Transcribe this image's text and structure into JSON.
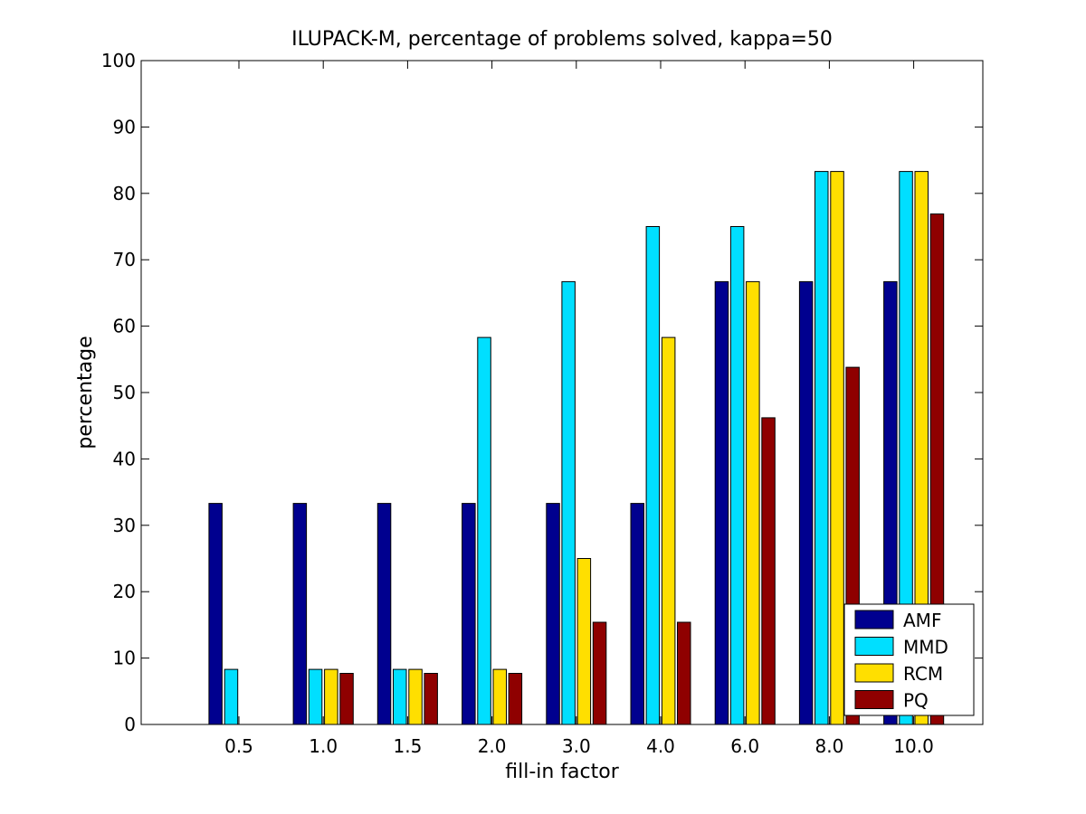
{
  "chart_data": {
    "type": "bar",
    "title": "ILUPACK-M, percentage of problems solved, kappa=50",
    "xlabel": "fill-in factor",
    "ylabel": "percentage",
    "ylim": [
      0,
      100
    ],
    "yticks": [
      0,
      10,
      20,
      30,
      40,
      50,
      60,
      70,
      80,
      90,
      100
    ],
    "categories": [
      "0.5",
      "1.0",
      "1.5",
      "2.0",
      "3.0",
      "4.0",
      "6.0",
      "8.0",
      "10.0"
    ],
    "grid": false,
    "legend_position": "bottom-right",
    "series": [
      {
        "name": "AMF",
        "color": "#00008f",
        "values": [
          33.3,
          33.3,
          33.3,
          33.3,
          33.3,
          33.3,
          66.7,
          66.7,
          66.7
        ]
      },
      {
        "name": "MMD",
        "color": "#00dfff",
        "values": [
          8.3,
          8.3,
          8.3,
          58.3,
          66.7,
          75.0,
          75.0,
          83.3,
          83.3
        ]
      },
      {
        "name": "RCM",
        "color": "#ffdf00",
        "values": [
          0,
          8.3,
          8.3,
          8.3,
          25.0,
          58.3,
          66.7,
          83.3,
          83.3
        ]
      },
      {
        "name": "PQ",
        "color": "#8f0000",
        "values": [
          0,
          7.7,
          7.7,
          7.7,
          15.4,
          15.4,
          46.2,
          53.8,
          76.9
        ]
      }
    ]
  }
}
